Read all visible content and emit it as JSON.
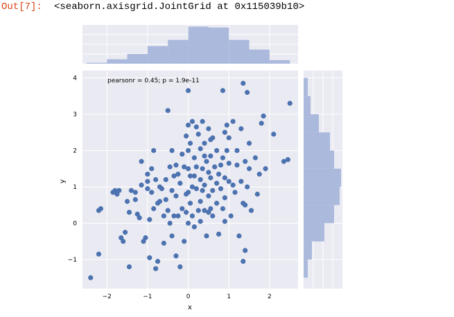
{
  "notebook": {
    "prompt": "Out[7]:",
    "repr": "<seaborn.axisgrid.JointGrid at 0x115039b10>"
  },
  "chart_data": {
    "type": "scatter",
    "grid": true,
    "xlabel": "x",
    "ylabel": "y",
    "xlim": [
      -2.6,
      2.7
    ],
    "ylim": [
      -1.8,
      4.2
    ],
    "xticks": [
      -2,
      -1,
      0,
      1,
      2
    ],
    "xtick_labels": [
      "−2",
      "−1",
      "0",
      "1",
      "2"
    ],
    "yticks": [
      -1,
      0,
      1,
      2,
      3,
      4
    ],
    "ytick_labels": [
      "−1",
      "0",
      "1",
      "2",
      "3",
      "4"
    ],
    "annotation": "pearsonr = 0.45; p = 1.9e-11",
    "colors": {
      "points": "#4c72b0",
      "hist": "#a3b4d9",
      "background": "#eaeaf2",
      "grid": "#ffffff",
      "prompt": "#d84315"
    },
    "points": [
      [
        -2.4,
        -1.5
      ],
      [
        -2.2,
        -0.85
      ],
      [
        -2.2,
        0.35
      ],
      [
        -2.15,
        0.4
      ],
      [
        -1.85,
        0.85
      ],
      [
        -1.8,
        0.9
      ],
      [
        -1.75,
        0.8
      ],
      [
        -1.7,
        0.9
      ],
      [
        -1.65,
        -0.4
      ],
      [
        -1.6,
        -0.5
      ],
      [
        -1.55,
        -0.25
      ],
      [
        -1.5,
        0.6
      ],
      [
        -1.45,
        0.3
      ],
      [
        -1.45,
        -1.2
      ],
      [
        -1.4,
        0.9
      ],
      [
        -1.3,
        0.85
      ],
      [
        -1.3,
        0.65
      ],
      [
        -1.25,
        0.25
      ],
      [
        -1.2,
        0.15
      ],
      [
        -1.15,
        1.05
      ],
      [
        -1.15,
        1.7
      ],
      [
        -1.1,
        -0.5
      ],
      [
        -1.05,
        -0.4
      ],
      [
        -1.0,
        1.35
      ],
      [
        -1.0,
        1.15
      ],
      [
        -1.0,
        0.95
      ],
      [
        -0.95,
        -0.95
      ],
      [
        -0.95,
        0.1
      ],
      [
        -0.9,
        1.5
      ],
      [
        -0.9,
        0.85
      ],
      [
        -0.85,
        0.4
      ],
      [
        -0.85,
        2.0
      ],
      [
        -0.8,
        1.2
      ],
      [
        -0.8,
        -1.25
      ],
      [
        -0.75,
        0.55
      ],
      [
        -0.75,
        -1.05
      ],
      [
        -0.7,
        1.0
      ],
      [
        -0.7,
        0.6
      ],
      [
        -0.65,
        0.95
      ],
      [
        -0.6,
        0.2
      ],
      [
        -0.6,
        -0.55
      ],
      [
        -0.55,
        1.2
      ],
      [
        -0.55,
        0.65
      ],
      [
        -0.5,
        3.1
      ],
      [
        -0.5,
        0.35
      ],
      [
        -0.45,
        1.55
      ],
      [
        -0.45,
        0.0
      ],
      [
        -0.4,
        2.0
      ],
      [
        -0.4,
        0.9
      ],
      [
        -0.4,
        -0.35
      ],
      [
        -0.35,
        1.3
      ],
      [
        -0.35,
        0.2
      ],
      [
        -0.3,
        1.6
      ],
      [
        -0.3,
        0.75
      ],
      [
        -0.3,
        -0.9
      ],
      [
        -0.25,
        1.35
      ],
      [
        -0.25,
        0.2
      ],
      [
        -0.2,
        1.1
      ],
      [
        -0.2,
        -1.2
      ],
      [
        -0.15,
        1.9
      ],
      [
        -0.15,
        0.4
      ],
      [
        -0.1,
        1.55
      ],
      [
        -0.1,
        -0.5
      ],
      [
        -0.05,
        2.4
      ],
      [
        -0.05,
        0.8
      ],
      [
        0.0,
        3.65
      ],
      [
        0.0,
        2.7
      ],
      [
        0.0,
        2.0
      ],
      [
        0.0,
        1.5
      ],
      [
        0.0,
        0.85
      ],
      [
        0.0,
        0.0
      ],
      [
        0.05,
        2.2
      ],
      [
        0.05,
        1.3
      ],
      [
        0.05,
        0.55
      ],
      [
        0.1,
        2.8
      ],
      [
        0.1,
        1.0
      ],
      [
        0.1,
        0.2
      ],
      [
        0.15,
        1.8
      ],
      [
        0.15,
        -0.1
      ],
      [
        0.2,
        2.65
      ],
      [
        0.2,
        1.55
      ],
      [
        0.2,
        0.95
      ],
      [
        0.25,
        2.45
      ],
      [
        0.25,
        0.35
      ],
      [
        0.3,
        2.05
      ],
      [
        0.3,
        1.2
      ],
      [
        0.3,
        0.6
      ],
      [
        0.3,
        0.05
      ],
      [
        0.35,
        2.8
      ],
      [
        0.35,
        1.5
      ],
      [
        0.35,
        0.9
      ],
      [
        0.4,
        2.2
      ],
      [
        0.4,
        1.05
      ],
      [
        0.4,
        0.35
      ],
      [
        0.45,
        1.7
      ],
      [
        0.45,
        -0.35
      ],
      [
        0.5,
        2.6
      ],
      [
        0.5,
        1.4
      ],
      [
        0.5,
        0.75
      ],
      [
        0.5,
        0.3
      ],
      [
        0.55,
        2.3
      ],
      [
        0.55,
        1.85
      ],
      [
        0.55,
        1.25
      ],
      [
        0.55,
        0.4
      ],
      [
        0.6,
        2.35
      ],
      [
        0.6,
        0.9
      ],
      [
        0.6,
        0.2
      ],
      [
        0.65,
        1.55
      ],
      [
        0.7,
        2.0
      ],
      [
        0.7,
        1.1
      ],
      [
        0.7,
        0.55
      ],
      [
        0.75,
        1.35
      ],
      [
        0.75,
        -0.3
      ],
      [
        0.8,
        1.6
      ],
      [
        0.8,
        0.95
      ],
      [
        0.85,
        3.65
      ],
      [
        0.85,
        1.8
      ],
      [
        0.85,
        0.4
      ],
      [
        0.9,
        2.5
      ],
      [
        0.9,
        1.25
      ],
      [
        0.9,
        0.7
      ],
      [
        0.95,
        2.7
      ],
      [
        0.95,
        2.0
      ],
      [
        1.0,
        2.35
      ],
      [
        1.0,
        1.65
      ],
      [
        1.0,
        1.15
      ],
      [
        1.05,
        0.2
      ],
      [
        1.1,
        2.8
      ],
      [
        1.1,
        1.05
      ],
      [
        1.15,
        0.85
      ],
      [
        1.2,
        2.0
      ],
      [
        1.2,
        1.6
      ],
      [
        1.25,
        -0.35
      ],
      [
        1.3,
        2.6
      ],
      [
        1.3,
        1.15
      ],
      [
        1.35,
        3.85
      ],
      [
        1.35,
        0.55
      ],
      [
        1.35,
        -1.05
      ],
      [
        1.4,
        1.7
      ],
      [
        1.4,
        0.5
      ],
      [
        1.45,
        3.6
      ],
      [
        1.45,
        1.0
      ],
      [
        1.5,
        2.2
      ],
      [
        1.5,
        1.5
      ],
      [
        1.55,
        0.35
      ],
      [
        1.65,
        1.8
      ],
      [
        1.7,
        0.8
      ],
      [
        1.75,
        1.35
      ],
      [
        1.8,
        2.75
      ],
      [
        1.85,
        2.95
      ],
      [
        1.9,
        1.5
      ],
      [
        2.1,
        2.45
      ],
      [
        2.35,
        1.7
      ],
      [
        2.45,
        1.75
      ],
      [
        2.5,
        3.3
      ],
      [
        1.4,
        -0.75
      ],
      [
        0.9,
        0.05
      ],
      [
        -0.05,
        0.3
      ],
      [
        0.15,
        1.3
      ],
      [
        0.4,
        1.85
      ]
    ],
    "x_hist": {
      "bins": [
        -2.5,
        -2.0,
        -1.5,
        -1.0,
        -0.5,
        0.0,
        0.5,
        1.0,
        1.5,
        2.0,
        2.5
      ],
      "counts": [
        1,
        5,
        11,
        20,
        27,
        42,
        41,
        27,
        16,
        4
      ],
      "ymax": 44
    },
    "y_hist": {
      "bins": [
        -1.5,
        -1.0,
        -0.5,
        0.0,
        0.5,
        1.0,
        1.5,
        2.0,
        2.5,
        3.0,
        3.5,
        4.0
      ],
      "counts": [
        3,
        6,
        15,
        22,
        26,
        27,
        22,
        19,
        11,
        5,
        3
      ],
      "xmax": 28
    }
  }
}
